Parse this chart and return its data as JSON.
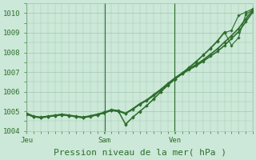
{
  "background_color": "#cce8d8",
  "grid_color": "#a0c8b0",
  "line_color": "#2d6e2d",
  "vline_color": "#2d6e2d",
  "ylim": [
    1004.0,
    1010.5
  ],
  "yticks": [
    1004,
    1005,
    1006,
    1007,
    1008,
    1009,
    1010
  ],
  "xlabel": "Pression niveau de la mer( hPa )",
  "xlabel_fontsize": 8,
  "tick_fontsize": 6.5,
  "day_labels": [
    "Jeu",
    "Sam",
    "Ven"
  ],
  "day_positions": [
    0.0,
    0.345,
    0.655
  ],
  "num_points": 33,
  "series": [
    [
      1004.85,
      1004.72,
      1004.68,
      1004.72,
      1004.78,
      1004.82,
      1004.78,
      1004.72,
      1004.68,
      1004.74,
      1004.82,
      1004.92,
      1005.05,
      1005.0,
      1004.88,
      1005.1,
      1005.35,
      1005.55,
      1005.8,
      1006.08,
      1006.38,
      1006.65,
      1006.9,
      1007.12,
      1007.32,
      1007.55,
      1007.8,
      1008.05,
      1008.35,
      1008.7,
      1009.05,
      1009.55,
      1010.05
    ],
    [
      1004.9,
      1004.75,
      1004.7,
      1004.75,
      1004.8,
      1004.85,
      1004.8,
      1004.75,
      1004.7,
      1004.77,
      1004.85,
      1004.95,
      1005.08,
      1005.03,
      1004.9,
      1005.12,
      1005.38,
      1005.58,
      1005.85,
      1006.12,
      1006.42,
      1006.7,
      1006.95,
      1007.17,
      1007.38,
      1007.62,
      1007.9,
      1008.18,
      1008.52,
      1008.85,
      1009.22,
      1009.7,
      1010.15
    ],
    [
      1004.88,
      1004.73,
      1004.68,
      1004.73,
      1004.79,
      1004.83,
      1004.79,
      1004.73,
      1004.69,
      1004.75,
      1004.83,
      1004.93,
      1005.06,
      1005.01,
      1004.35,
      1004.7,
      1005.0,
      1005.3,
      1005.65,
      1006.0,
      1006.35,
      1006.65,
      1006.95,
      1007.25,
      1007.55,
      1007.88,
      1008.22,
      1008.6,
      1009.05,
      1008.35,
      1008.75,
      1009.92,
      1010.18
    ],
    [
      1004.85,
      1004.72,
      1004.67,
      1004.72,
      1004.78,
      1004.82,
      1004.78,
      1004.72,
      1004.67,
      1004.73,
      1004.81,
      1004.91,
      1005.04,
      1004.99,
      1004.32,
      1004.68,
      1004.98,
      1005.28,
      1005.62,
      1005.98,
      1006.32,
      1006.62,
      1006.92,
      1007.22,
      1007.5,
      1007.85,
      1008.18,
      1008.55,
      1009.0,
      1009.12,
      1009.88,
      1010.05,
      1010.22
    ]
  ]
}
